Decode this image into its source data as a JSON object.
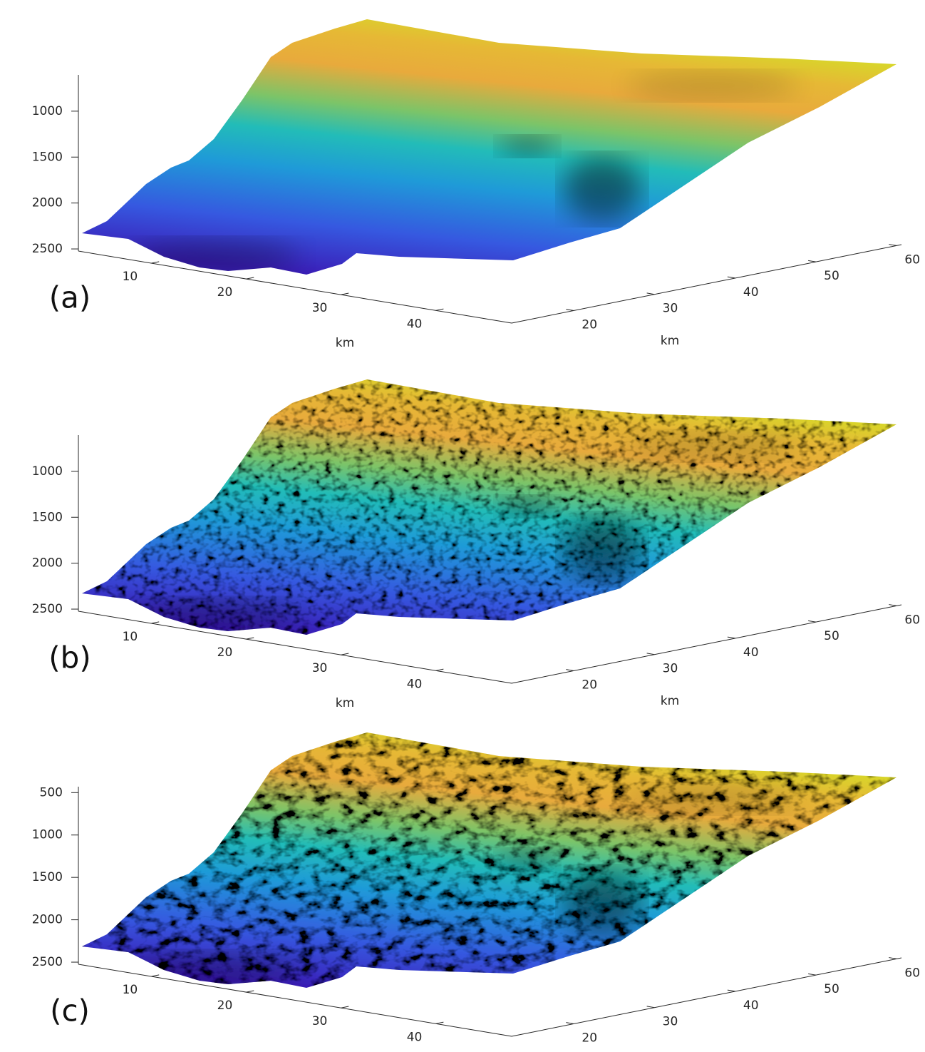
{
  "chart_data": [
    {
      "type": "surface",
      "panel_label": "(a)",
      "xlabel": "km",
      "ylabel": "km",
      "xlim": [
        2.3,
        48
      ],
      "xticks": [
        10,
        20,
        30,
        40
      ],
      "ylim": [
        12.3,
        60.6
      ],
      "yticks": [
        20,
        30,
        40,
        50,
        60
      ],
      "zlim": [
        605,
        2523
      ],
      "zticks": [
        1000,
        1500,
        2000,
        2500
      ]
    },
    {
      "type": "surface",
      "panel_label": "(b)",
      "xlabel": "km",
      "ylabel": "km",
      "xlim": [
        2.3,
        48
      ],
      "xticks": [
        10,
        20,
        30,
        40
      ],
      "ylim": [
        12.3,
        60.6
      ],
      "yticks": [
        20,
        30,
        40,
        50,
        60
      ],
      "zlim": [
        605,
        2523
      ],
      "zticks": [
        1000,
        1500,
        2000,
        2500
      ]
    },
    {
      "type": "surface",
      "panel_label": "(c)",
      "xlim": [
        2.3,
        48
      ],
      "xticks": [
        10,
        20,
        30,
        40
      ],
      "ylim": [
        12.3,
        60.6
      ],
      "yticks": [
        20,
        30,
        40,
        50,
        60
      ],
      "zlim": [
        430,
        2525
      ],
      "zticks": [
        500,
        1000,
        1500,
        2000,
        2500
      ]
    }
  ]
}
